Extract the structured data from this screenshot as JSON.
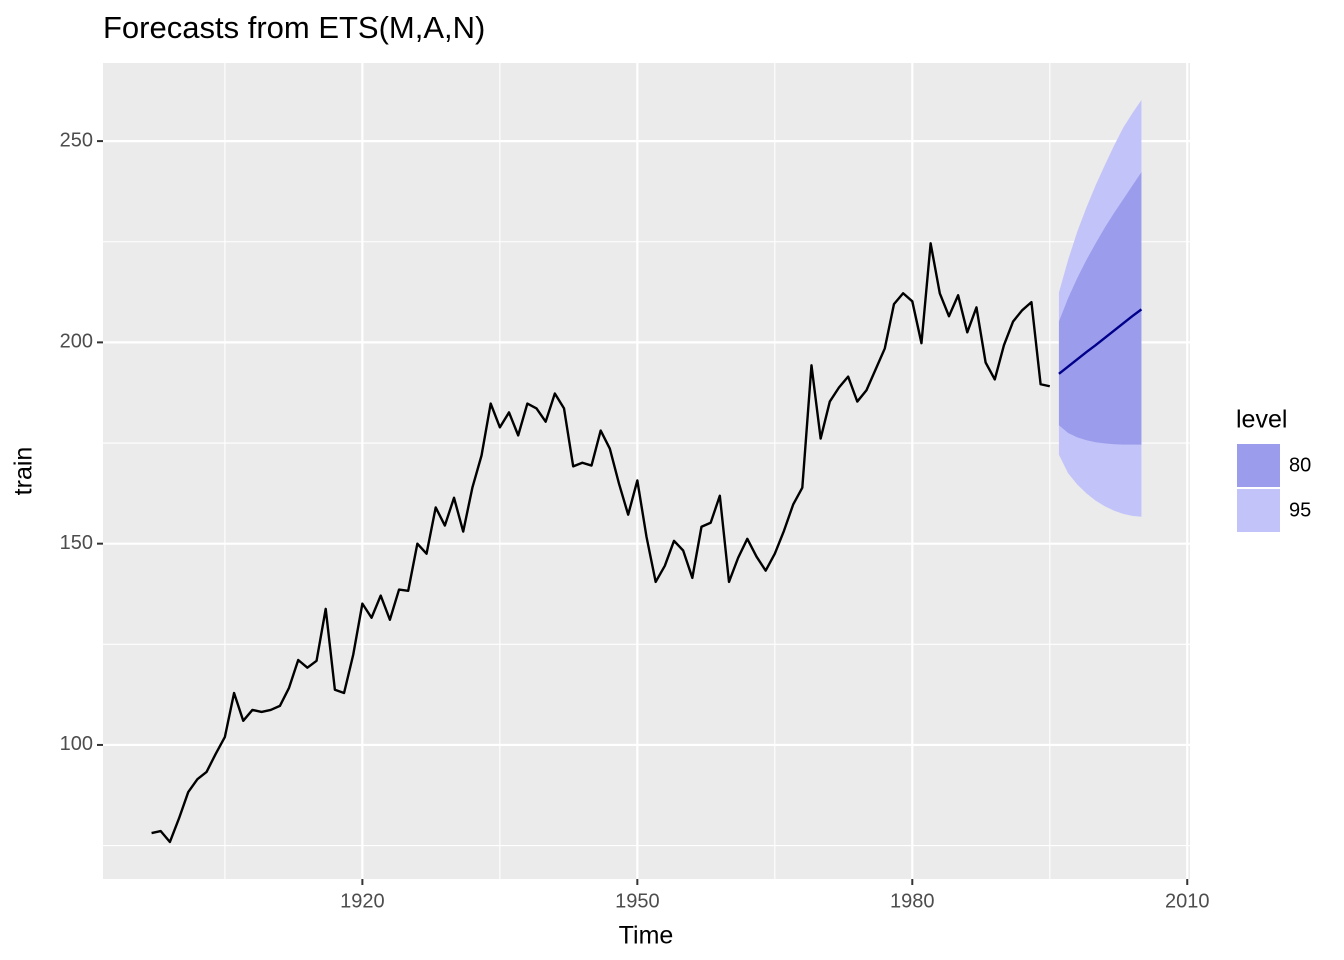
{
  "chart_data": {
    "type": "line",
    "title": "Forecasts from ETS(M,A,N)",
    "x_label": "Time",
    "y_label": "train",
    "x": [
      1897,
      1898,
      1899,
      1900,
      1901,
      1902,
      1903,
      1904,
      1905,
      1906,
      1907,
      1908,
      1909,
      1910,
      1911,
      1912,
      1913,
      1914,
      1915,
      1916,
      1917,
      1918,
      1919,
      1920,
      1921,
      1922,
      1923,
      1924,
      1925,
      1926,
      1927,
      1928,
      1929,
      1930,
      1931,
      1932,
      1933,
      1934,
      1935,
      1936,
      1937,
      1938,
      1939,
      1940,
      1941,
      1942,
      1943,
      1944,
      1945,
      1946,
      1947,
      1948,
      1949,
      1950,
      1951,
      1952,
      1953,
      1954,
      1955,
      1956,
      1957,
      1958,
      1959,
      1960,
      1961,
      1962,
      1963,
      1964,
      1965,
      1966,
      1967,
      1968,
      1969,
      1970,
      1971,
      1972,
      1973,
      1974,
      1975,
      1976,
      1977,
      1978,
      1979,
      1980,
      1981,
      1982,
      1983,
      1984,
      1985,
      1986,
      1987,
      1988,
      1989,
      1990,
      1991,
      1992,
      1993,
      1994,
      1995
    ],
    "series": [
      {
        "color": "#000000",
        "values": [
          78.1,
          78.6,
          75.9,
          81.8,
          88.3,
          91.5,
          93.3,
          97.8,
          102,
          112.9,
          106,
          108.7,
          108.2,
          108.7,
          109.7,
          114.2,
          121.1,
          119.2,
          120.9,
          133.8,
          113.7,
          112.9,
          122.4,
          135.1,
          131.6,
          137.1,
          131.1,
          138.6,
          138.3,
          150,
          147.5,
          159,
          154.5,
          161.4,
          153,
          163.9,
          171.9,
          184.8,
          178.9,
          182.6,
          176.9,
          184.8,
          183.6,
          180.3,
          187.3,
          183.6,
          169.2,
          170.1,
          169.4,
          178.1,
          173.6,
          164.9,
          157.2,
          165.7,
          151.7,
          140.5,
          144.5,
          150.7,
          148.3,
          141.5,
          154.2,
          155.2,
          161.9,
          140.5,
          146.5,
          151.2,
          146.8,
          143.3,
          147.5,
          153.2,
          159.7,
          163.9,
          194.3,
          176.1,
          185.3,
          188.8,
          191.5,
          185.3,
          188.1,
          193.3,
          198.5,
          209.5,
          212.2,
          210.2,
          199.8,
          224.6,
          212.2,
          206.5,
          211.7,
          202.5,
          208.7,
          195,
          190.8,
          199.3,
          205.2,
          208,
          210,
          189.6,
          189.1
        ]
      }
    ],
    "forecast": {
      "color": "#00008b",
      "x": [
        1996,
        1997,
        1998,
        1999,
        2000,
        2001,
        2002,
        2003,
        2004,
        2005
      ],
      "values": [
        192.2,
        194,
        195.8,
        197.6,
        199.3,
        201.1,
        202.9,
        204.7,
        206.5,
        208.2
      ]
    },
    "bands": [
      {
        "name": "80",
        "color": "#9b9dec",
        "lower": [
          179.4,
          177.5,
          176.4,
          175.7,
          175.2,
          174.9,
          174.7,
          174.6,
          174.6,
          174.6
        ],
        "upper": [
          205.2,
          211,
          216,
          220.5,
          224.6,
          228.5,
          232.1,
          235.5,
          238.9,
          242.3
        ]
      },
      {
        "name": "95",
        "color": "#c2c4f9",
        "lower": [
          172.1,
          167.5,
          164.7,
          162.5,
          160.7,
          159.3,
          158.2,
          157.4,
          156.9,
          156.7
        ],
        "upper": [
          212.4,
          220.5,
          227.5,
          233.5,
          239,
          244,
          248.8,
          253.3,
          256.9,
          260.2
        ]
      }
    ],
    "legend_title": "level",
    "xlim": [
      1891.7,
      2010.3
    ],
    "ylim": [
      66.7,
      269.4
    ],
    "xticks": [
      1920,
      1950,
      1980,
      2010
    ],
    "yticks": [
      100,
      150,
      200,
      250
    ],
    "grid": true
  }
}
